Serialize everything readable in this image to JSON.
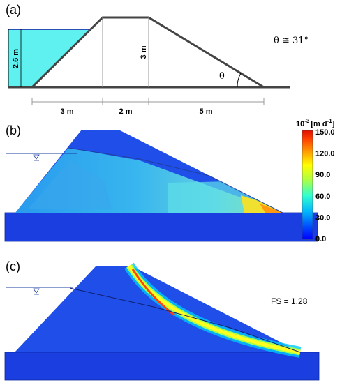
{
  "panel_a": {
    "label": "(a)",
    "water_depth": "2.6 m",
    "height": "3 m",
    "theta_symbol": "θ",
    "theta_eq": "θ ≅ 31°",
    "dims": [
      "3 m",
      "2 m",
      "5 m"
    ]
  },
  "panel_b": {
    "label": "(b)",
    "colorbar": {
      "unit_base": "10",
      "unit_exp": "-3",
      "unit_rest": "[m d",
      "unit_rest_exp": "-1",
      "unit_close": "]",
      "ticks": [
        "150.0",
        "120.0",
        "90.0",
        "60.0",
        "30.0",
        "0.0"
      ],
      "colors": [
        "#0000ff",
        "#0050ff",
        "#00b4ff",
        "#30ffd0",
        "#b0ff40",
        "#ffff00",
        "#ffa000",
        "#ff4000",
        "#e01000"
      ]
    }
  },
  "panel_c": {
    "label": "(c)",
    "fs": "FS = 1.28"
  }
}
